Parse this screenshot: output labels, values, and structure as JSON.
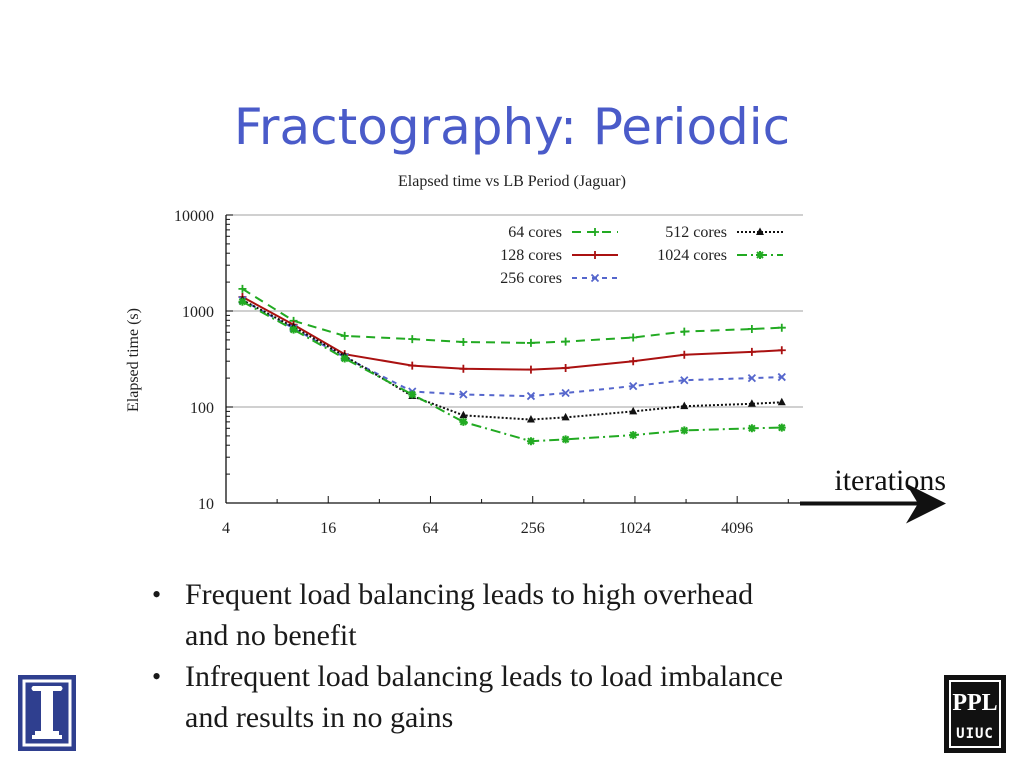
{
  "slide": {
    "title": "Fractography: Periodic",
    "annotation": "iterations",
    "bullets": [
      "Frequent load balancing leads to high overhead and no benefit",
      "Infrequent load balancing leads to load imbalance and results in no gains"
    ],
    "logo_left": "university-illinois-logo",
    "logo_right": {
      "top": "PPL",
      "bottom": "UIUC"
    }
  },
  "chart_data": {
    "type": "line",
    "title": "Elapsed time vs LB Period (Jaguar)",
    "xlabel": "",
    "ylabel": "Elapsed time (s)",
    "x_scale": "log2",
    "y_scale": "log10",
    "xlim": [
      4,
      10000
    ],
    "ylim": [
      10,
      10000
    ],
    "x_ticks": [
      "4",
      "16",
      "64",
      "256",
      "1024",
      "4096"
    ],
    "x_tick_values": [
      4,
      16,
      64,
      256,
      1024,
      4096
    ],
    "y_ticks": [
      "10",
      "100",
      "1000",
      "10000"
    ],
    "y_tick_values": [
      10,
      100,
      1000,
      10000
    ],
    "grid": "horizontal",
    "legend": "top-right",
    "x": [
      5,
      10,
      20,
      50,
      100,
      250,
      400,
      1000,
      2000,
      5000,
      7500
    ],
    "series": [
      {
        "name": "64 cores",
        "color": "#22aa22",
        "dash": "9,6",
        "marker": "plus",
        "values": [
          1700,
          790,
          550,
          510,
          475,
          465,
          480,
          530,
          610,
          650,
          670
        ]
      },
      {
        "name": "128 cores",
        "color": "#aa1111",
        "dash": "",
        "marker": "plus",
        "values": [
          1400,
          720,
          355,
          270,
          250,
          245,
          255,
          300,
          350,
          375,
          390
        ]
      },
      {
        "name": "256 cores",
        "color": "#5566cc",
        "dash": "5,5",
        "marker": "x",
        "values": [
          1300,
          660,
          330,
          145,
          135,
          130,
          140,
          165,
          190,
          200,
          205
        ]
      },
      {
        "name": "512 cores",
        "color": "#111111",
        "dash": "2,2",
        "marker": "triangle",
        "values": [
          1300,
          680,
          340,
          130,
          82,
          74,
          78,
          90,
          102,
          108,
          112
        ]
      },
      {
        "name": "1024 cores",
        "color": "#22aa22",
        "dash": "10,4,2,4",
        "marker": "star",
        "values": [
          1250,
          640,
          320,
          135,
          70,
          44,
          46,
          51,
          57,
          60,
          61
        ]
      }
    ]
  }
}
